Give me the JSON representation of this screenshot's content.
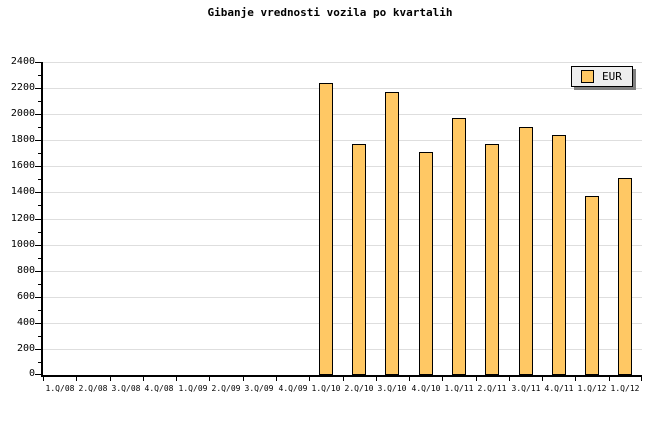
{
  "chart_data": {
    "type": "bar",
    "title": "Gibanje vrednosti vozila po kvartalih",
    "categories": [
      "1.Q/08",
      "2.Q/08",
      "3.Q/08",
      "4.Q/08",
      "1.Q/09",
      "2.Q/09",
      "3.Q/09",
      "4.Q/09",
      "1.Q/10",
      "2.Q/10",
      "3.Q/10",
      "4.Q/10",
      "1.Q/11",
      "2.Q/11",
      "3.Q/11",
      "4.Q/11",
      "1.Q/12",
      "1.Q/12"
    ],
    "series": [
      {
        "name": "EUR",
        "values": [
          null,
          null,
          null,
          null,
          null,
          null,
          null,
          null,
          2240,
          1770,
          2170,
          1710,
          1970,
          1770,
          1900,
          1840,
          1370,
          1510
        ]
      }
    ],
    "xlabel": "",
    "ylabel": "",
    "ylim": [
      0,
      2400
    ],
    "ytick_major": 200,
    "ytick_minor": 100,
    "ytick_labels": [
      "0",
      "200",
      "400",
      "600",
      "800",
      "1000",
      "1200",
      "1400",
      "1600",
      "1800",
      "2000",
      "2200",
      "2400"
    ],
    "grid": "horizontal-major",
    "legend": {
      "entries": [
        "EUR"
      ],
      "position": "top-right"
    }
  },
  "colors": {
    "bar_fill": "#FFC864",
    "bar_border": "#000000",
    "grid": "#DEDEDE",
    "axis": "#000000",
    "legend_bg": "#EEEEEE",
    "legend_shadow": "#808080",
    "background": "#FFFFFF"
  }
}
